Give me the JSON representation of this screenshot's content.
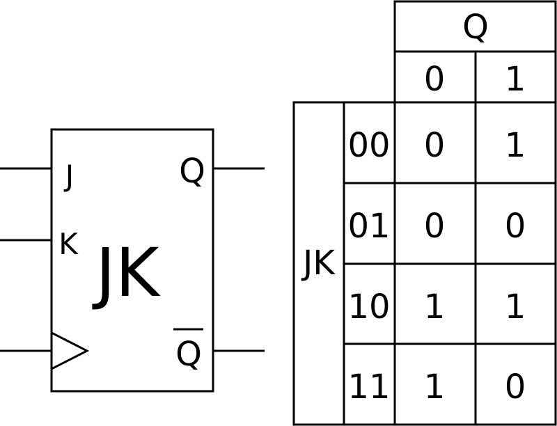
{
  "flipflop": {
    "title": "JK",
    "inputs": {
      "j": "J",
      "k": "K"
    },
    "outputs": {
      "q": "Q",
      "q_bar": "Q"
    }
  },
  "kmap": {
    "col_var": "Q",
    "row_var": "JK",
    "col_headers": [
      "0",
      "1"
    ],
    "rows": [
      {
        "label": "00",
        "cells": [
          "0",
          "1"
        ]
      },
      {
        "label": "01",
        "cells": [
          "0",
          "0"
        ]
      },
      {
        "label": "10",
        "cells": [
          "1",
          "1"
        ]
      },
      {
        "label": "11",
        "cells": [
          "1",
          "0"
        ]
      }
    ]
  }
}
